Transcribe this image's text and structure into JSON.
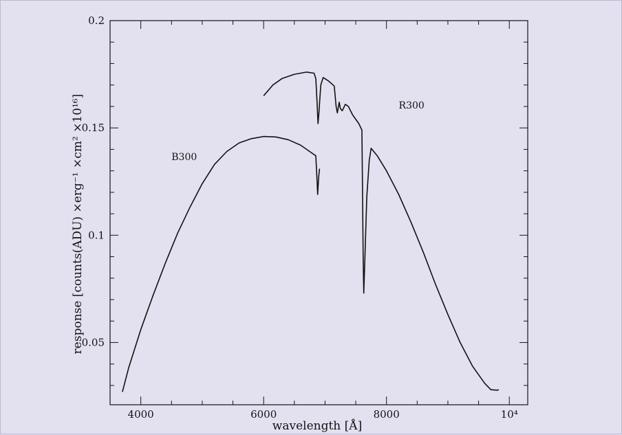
{
  "chart_data": {
    "type": "line",
    "xlabel": "wavelength [Å]",
    "ylabel": "response [counts(ADU) ×erg⁻¹ ×cm² ×10¹⁶]",
    "xlim": [
      3500,
      10300
    ],
    "ylim": [
      0.021,
      0.2
    ],
    "x_ticks": [
      {
        "value": 4000,
        "label": "4000"
      },
      {
        "value": 6000,
        "label": "6000"
      },
      {
        "value": 8000,
        "label": "8000"
      },
      {
        "value": 10000,
        "label": "10⁴"
      }
    ],
    "y_ticks": [
      {
        "value": 0.05,
        "label": "0.05"
      },
      {
        "value": 0.1,
        "label": "0.1"
      },
      {
        "value": 0.15,
        "label": "0.15"
      },
      {
        "value": 0.2,
        "label": "0.2"
      }
    ],
    "grid": false,
    "series": [
      {
        "name": "B300",
        "color": "#111111",
        "points": [
          [
            3700,
            0.027
          ],
          [
            3800,
            0.038
          ],
          [
            4000,
            0.056
          ],
          [
            4200,
            0.072
          ],
          [
            4400,
            0.087
          ],
          [
            4600,
            0.101
          ],
          [
            4800,
            0.113
          ],
          [
            5000,
            0.124
          ],
          [
            5200,
            0.133
          ],
          [
            5400,
            0.139
          ],
          [
            5600,
            0.143
          ],
          [
            5800,
            0.145
          ],
          [
            6000,
            0.146
          ],
          [
            6200,
            0.1458
          ],
          [
            6400,
            0.1445
          ],
          [
            6600,
            0.142
          ],
          [
            6750,
            0.139
          ],
          [
            6850,
            0.137
          ],
          [
            6865,
            0.128
          ],
          [
            6880,
            0.119
          ],
          [
            6895,
            0.127
          ],
          [
            6910,
            0.131
          ]
        ]
      },
      {
        "name": "R300",
        "color": "#111111",
        "points": [
          [
            6000,
            0.165
          ],
          [
            6150,
            0.17
          ],
          [
            6300,
            0.173
          ],
          [
            6500,
            0.175
          ],
          [
            6700,
            0.176
          ],
          [
            6820,
            0.1755
          ],
          [
            6850,
            0.173
          ],
          [
            6870,
            0.162
          ],
          [
            6885,
            0.152
          ],
          [
            6900,
            0.157
          ],
          [
            6930,
            0.17
          ],
          [
            6970,
            0.1735
          ],
          [
            7050,
            0.172
          ],
          [
            7150,
            0.1695
          ],
          [
            7180,
            0.16
          ],
          [
            7200,
            0.157
          ],
          [
            7230,
            0.162
          ],
          [
            7250,
            0.159
          ],
          [
            7280,
            0.158
          ],
          [
            7330,
            0.161
          ],
          [
            7380,
            0.16
          ],
          [
            7450,
            0.156
          ],
          [
            7550,
            0.152
          ],
          [
            7600,
            0.149
          ],
          [
            7610,
            0.12
          ],
          [
            7620,
            0.09
          ],
          [
            7630,
            0.073
          ],
          [
            7650,
            0.09
          ],
          [
            7680,
            0.118
          ],
          [
            7720,
            0.135
          ],
          [
            7750,
            0.1405
          ],
          [
            7850,
            0.137
          ],
          [
            8000,
            0.13
          ],
          [
            8200,
            0.119
          ],
          [
            8400,
            0.106
          ],
          [
            8600,
            0.092
          ],
          [
            8800,
            0.077
          ],
          [
            9000,
            0.063
          ],
          [
            9200,
            0.05
          ],
          [
            9400,
            0.039
          ],
          [
            9600,
            0.031
          ],
          [
            9700,
            0.028
          ],
          [
            9800,
            0.0278
          ],
          [
            9830,
            0.028
          ]
        ]
      }
    ],
    "annotations": [
      {
        "text": "B300",
        "x": 4500,
        "y": 0.135
      },
      {
        "text": "R300",
        "x": 8200,
        "y": 0.159
      }
    ]
  }
}
